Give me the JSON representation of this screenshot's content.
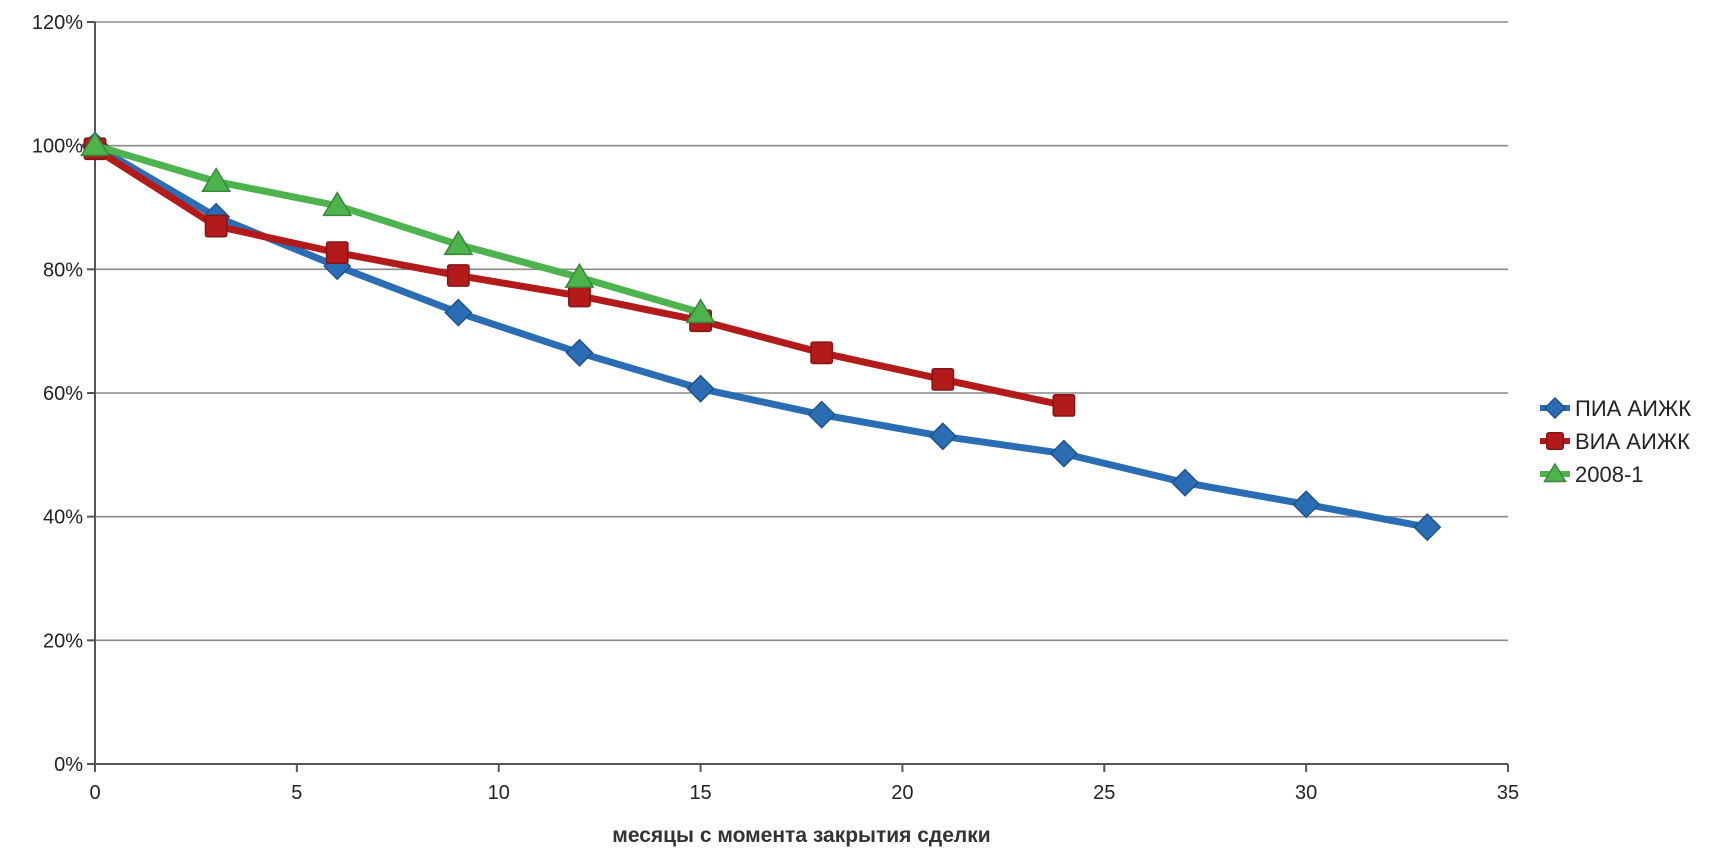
{
  "chart_data": {
    "type": "line",
    "xlabel": "месяцы с момента закрытия сделки",
    "ylabel": "",
    "xlim": [
      0,
      35
    ],
    "ylim": [
      0,
      1.2
    ],
    "x_ticks": [
      0,
      5,
      10,
      15,
      20,
      25,
      30,
      35
    ],
    "y_ticks": [
      0,
      0.2,
      0.4,
      0.6,
      0.8,
      1.0,
      1.2
    ],
    "x_tick_labels": [
      "0",
      "5",
      "10",
      "15",
      "20",
      "25",
      "30",
      "35"
    ],
    "y_tick_labels": [
      "0%",
      "20%",
      "40%",
      "60%",
      "80%",
      "100%",
      "120%"
    ],
    "grid": true,
    "legend_position": "right",
    "series": [
      {
        "name": "ПИА АИЖК",
        "color": "#2a6db5",
        "marker": "diamond",
        "x": [
          0,
          3,
          6,
          9,
          12,
          15,
          18,
          21,
          24,
          27,
          30,
          33
        ],
        "y": [
          1.0,
          0.885,
          0.805,
          0.73,
          0.665,
          0.607,
          0.565,
          0.53,
          0.502,
          0.455,
          0.42,
          0.383
        ]
      },
      {
        "name": "ВИА АИЖК",
        "color": "#b31b1b",
        "marker": "square",
        "x": [
          0,
          3,
          6,
          9,
          12,
          15,
          18,
          21,
          24
        ],
        "y": [
          0.995,
          0.87,
          0.827,
          0.79,
          0.757,
          0.717,
          0.665,
          0.622,
          0.58
        ]
      },
      {
        "name": "2008-1",
        "color": "#4db34d",
        "marker": "triangle",
        "x": [
          0,
          3,
          6,
          9,
          12,
          15
        ],
        "y": [
          1.0,
          0.942,
          0.903,
          0.84,
          0.787,
          0.73
        ]
      }
    ]
  }
}
